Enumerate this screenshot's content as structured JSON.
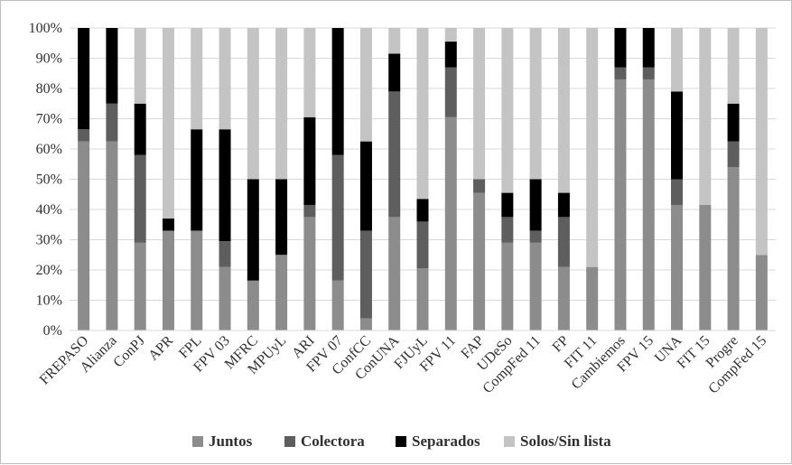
{
  "chart_data": {
    "type": "bar",
    "stacked": true,
    "ylim": [
      0,
      100
    ],
    "yticks": [
      "0%",
      "10%",
      "20%",
      "30%",
      "40%",
      "50%",
      "60%",
      "70%",
      "80%",
      "90%",
      "100%"
    ],
    "grid": true,
    "legend_position": "bottom",
    "categories": [
      "FREPASO",
      "Alianza",
      "ConPJ",
      "APR",
      "FPL",
      "FPV 03",
      "MFRC",
      "MPUyL",
      "ARI",
      "FPV 07",
      "ConfCC",
      "ConUNA",
      "FJUyL",
      "FPV 11",
      "FAP",
      "UDeSo",
      "CompFed 11",
      "FP",
      "FIT 11",
      "Cambiemos",
      "FPV 15",
      "UNA",
      "FIT 15",
      "Progre",
      "CompFed 15"
    ],
    "series": [
      {
        "name": "Juntos",
        "color": "#8c8c8c",
        "values": [
          62.5,
          62.5,
          29,
          33,
          33,
          21,
          16.5,
          25,
          37.5,
          16.5,
          4,
          37.5,
          20.5,
          70.5,
          45.5,
          29,
          29,
          21,
          21,
          83,
          83,
          41.5,
          41.5,
          54,
          25
        ]
      },
      {
        "name": "Colectora",
        "color": "#5e5e5e",
        "values": [
          4,
          12.5,
          29,
          0,
          0,
          8.5,
          0,
          0,
          4,
          41.5,
          29,
          41.5,
          15.5,
          16.5,
          4.5,
          8.5,
          4,
          16.5,
          0,
          4,
          4,
          8.5,
          0,
          8.5,
          0
        ]
      },
      {
        "name": "Separados",
        "color": "#000000",
        "values": [
          33.5,
          25,
          17,
          4,
          33.5,
          37,
          33.5,
          25,
          29,
          42,
          29.5,
          12.5,
          7.5,
          8.5,
          0,
          8,
          17,
          8,
          0,
          13,
          13,
          29,
          0,
          12.5,
          0
        ]
      },
      {
        "name": "Solos/Sin lista",
        "color": "#c4c4c4",
        "values": [
          0,
          0,
          25,
          63,
          33.5,
          33.5,
          50,
          50,
          29.5,
          0,
          37.5,
          8.5,
          56.5,
          4.5,
          50,
          54.5,
          50,
          54.5,
          79,
          0,
          0,
          21,
          58.5,
          25,
          75
        ]
      }
    ]
  }
}
